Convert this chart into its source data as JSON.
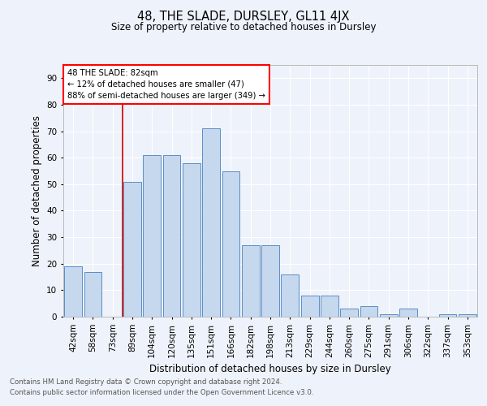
{
  "title": "48, THE SLADE, DURSLEY, GL11 4JX",
  "subtitle": "Size of property relative to detached houses in Dursley",
  "xlabel": "Distribution of detached houses by size in Dursley",
  "ylabel": "Number of detached properties",
  "categories": [
    "42sqm",
    "58sqm",
    "73sqm",
    "89sqm",
    "104sqm",
    "120sqm",
    "135sqm",
    "151sqm",
    "166sqm",
    "182sqm",
    "198sqm",
    "213sqm",
    "229sqm",
    "244sqm",
    "260sqm",
    "275sqm",
    "291sqm",
    "306sqm",
    "322sqm",
    "337sqm",
    "353sqm"
  ],
  "values": [
    19,
    17,
    0,
    51,
    61,
    61,
    58,
    71,
    55,
    27,
    27,
    16,
    8,
    8,
    3,
    4,
    1,
    3,
    0,
    1,
    1
  ],
  "bar_color": "#c5d8ee",
  "bar_edge_color": "#5b8ec4",
  "bg_color": "#eef2fa",
  "grid_color": "#ffffff",
  "vline_x_idx": 2.5,
  "vline_color": "#cc0000",
  "annotation_title": "48 THE SLADE: 82sqm",
  "annotation_line1": "← 12% of detached houses are smaller (47)",
  "annotation_line2": "88% of semi-detached houses are larger (349) →",
  "ylim": [
    0,
    95
  ],
  "yticks": [
    0,
    10,
    20,
    30,
    40,
    50,
    60,
    70,
    80,
    90
  ],
  "footer1": "Contains HM Land Registry data © Crown copyright and database right 2024.",
  "footer2": "Contains public sector information licensed under the Open Government Licence v3.0."
}
